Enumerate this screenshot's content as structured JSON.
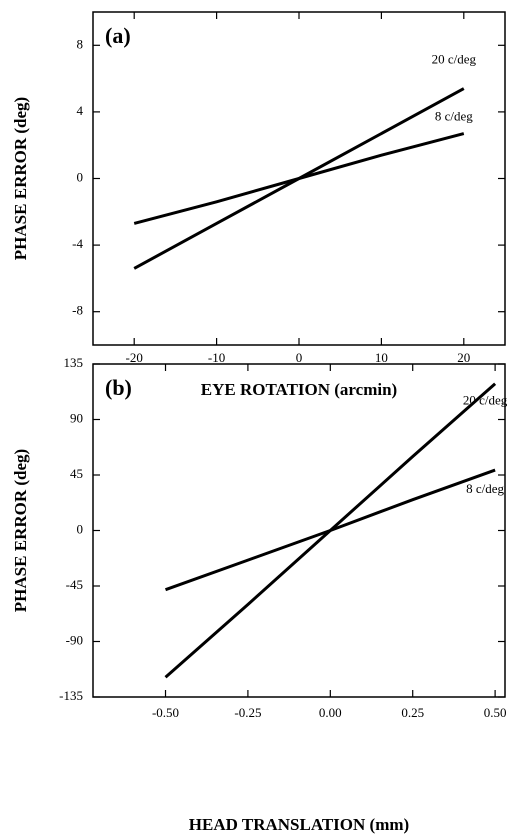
{
  "chart_data": [
    {
      "type": "line",
      "panel_label": "(a)",
      "x_label": "EYE ROTATION (arcmin)",
      "y_label": "PHASE ERROR (deg)",
      "x": [
        -20,
        -10,
        0,
        10,
        20
      ],
      "series": [
        {
          "name": "20 c/deg",
          "color": "#000000",
          "values": [
            -5.4,
            -2.7,
            0,
            2.7,
            5.4
          ]
        },
        {
          "name": "8 c/deg",
          "color": "#000000",
          "values": [
            -2.7,
            -1.4,
            0,
            1.4,
            2.7
          ]
        }
      ],
      "xlim": [
        -25,
        25
      ],
      "xticks": [
        -20,
        -10,
        0,
        10,
        20
      ],
      "ylim": [
        -10,
        10
      ],
      "yticks": [
        -8,
        -4,
        0,
        4,
        8
      ]
    },
    {
      "type": "line",
      "panel_label": "(b)",
      "x_label": "HEAD TRANSLATION (mm)",
      "y_label": "PHASE ERROR (deg)",
      "x": [
        -0.5,
        -0.25,
        0,
        0.25,
        0.5
      ],
      "series": [
        {
          "name": "20 c/deg",
          "color": "#000000",
          "values": [
            -119,
            -60,
            0,
            60,
            119
          ]
        },
        {
          "name": "8 c/deg",
          "color": "#000000",
          "values": [
            -48,
            -24,
            0,
            25,
            49
          ]
        }
      ],
      "xlim": [
        -0.72,
        0.53
      ],
      "xticks": [
        {
          "value": -0.5,
          "label": "-0.50"
        },
        -0.25,
        {
          "value": 0,
          "label": "0.00"
        },
        0.25,
        {
          "value": 0.5,
          "label": "0.50"
        }
      ],
      "ylim": [
        -135,
        135
      ],
      "yticks": [
        -135,
        -90,
        -45,
        0,
        45,
        90,
        135
      ]
    }
  ]
}
